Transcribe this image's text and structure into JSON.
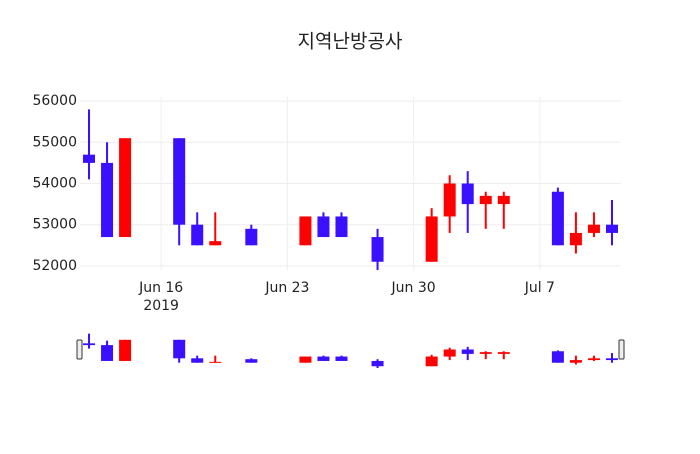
{
  "chart_data": {
    "type": "candlestick",
    "title": "지역난방공사",
    "x": [
      "2019-06-12",
      "2019-06-13",
      "2019-06-14",
      "2019-06-17",
      "2019-06-18",
      "2019-06-19",
      "2019-06-21",
      "2019-06-24",
      "2019-06-25",
      "2019-06-26",
      "2019-06-28",
      "2019-07-01",
      "2019-07-02",
      "2019-07-03",
      "2019-07-04",
      "2019-07-05",
      "2019-07-08",
      "2019-07-09",
      "2019-07-10",
      "2019-07-11"
    ],
    "open": [
      54700,
      54500,
      52700,
      55100,
      53000,
      52500,
      52900,
      52500,
      53200,
      53200,
      52700,
      52100,
      53200,
      54000,
      53500,
      53500,
      53800,
      52500,
      52800,
      53000
    ],
    "high": [
      55800,
      55000,
      55100,
      55100,
      53300,
      53300,
      53000,
      53200,
      53300,
      53300,
      52900,
      53400,
      54200,
      54300,
      53800,
      53800,
      53900,
      53300,
      53300,
      53600
    ],
    "low": [
      54100,
      52700,
      52700,
      52500,
      52500,
      52500,
      52500,
      52500,
      52700,
      52700,
      51900,
      52100,
      52800,
      52800,
      52900,
      52900,
      52500,
      52300,
      52700,
      52500
    ],
    "close": [
      54500,
      52700,
      55100,
      53000,
      52500,
      52600,
      52500,
      53200,
      52700,
      52700,
      52100,
      53200,
      54000,
      53500,
      53700,
      53700,
      52500,
      52800,
      53000,
      52800
    ],
    "increasing_color": "#ff0000",
    "decreasing_color": "#3b0fff",
    "xlim": [
      "2019-06-11T12:00",
      "2019-07-11T12:00"
    ],
    "xticks": [
      {
        "value": "2019-06-16",
        "label": "Jun 16"
      },
      {
        "value": "2019-06-23",
        "label": "Jun 23"
      },
      {
        "value": "2019-06-30",
        "label": "Jun 30"
      },
      {
        "value": "2019-07-07",
        "label": "Jul 7"
      }
    ],
    "xtick_year": "2019",
    "ylim": [
      51900,
      56100
    ],
    "yticks": [
      52000,
      53000,
      54000,
      55000,
      56000
    ],
    "grid": true,
    "rangeslider": true
  }
}
